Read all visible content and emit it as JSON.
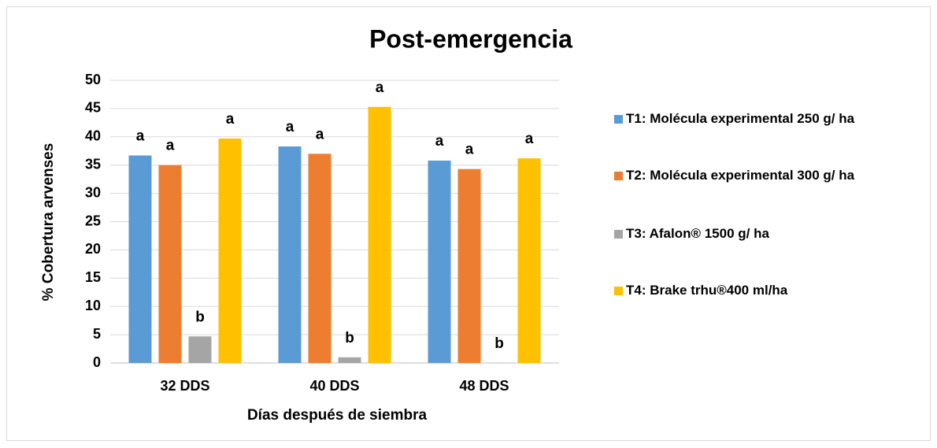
{
  "chart_data": {
    "type": "bar",
    "title": "Post-emergencia",
    "x_label": "Días después de siembra",
    "y_label": "% Cobertura arvenses",
    "categories": [
      "32 DDS",
      "40 DDS",
      "48 DDS"
    ],
    "series": [
      {
        "name": "T1: Molécula experimental 250 g/ ha",
        "color": "#5b9bd5",
        "values": [
          36.7,
          38.3,
          35.8
        ],
        "letters": [
          "a",
          "a",
          "a"
        ]
      },
      {
        "name": "T2: Molécula experimental 300 g/ ha",
        "color": "#ed7d31",
        "values": [
          35,
          37,
          34.3
        ],
        "letters": [
          "a",
          "a",
          "a"
        ]
      },
      {
        "name": "T3: Afalon® 1500 g/ ha",
        "color": "#a5a5a5",
        "values": [
          4.7,
          1,
          0
        ],
        "letters": [
          "b",
          "b",
          "b"
        ]
      },
      {
        "name": "T4: Brake trhu®400 ml/ha",
        "color": "#ffc000",
        "values": [
          39.7,
          45.3,
          36.2
        ],
        "letters": [
          "a",
          "a",
          "a"
        ]
      }
    ],
    "ylim": [
      0,
      50
    ],
    "yticks": [
      0,
      5,
      10,
      15,
      20,
      25,
      30,
      35,
      40,
      45,
      50
    ],
    "grid": true,
    "legend": "right"
  }
}
